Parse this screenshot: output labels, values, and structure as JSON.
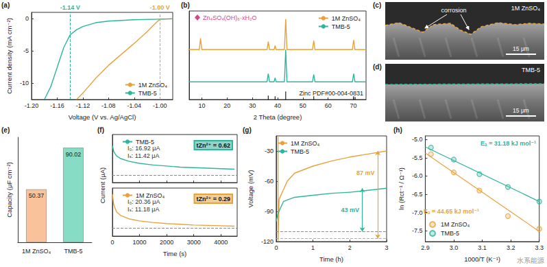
{
  "chart_data": [
    {
      "panel": "(a)",
      "type": "line",
      "x_label": "Voltage (V vs. Ag/AgCl)",
      "y_label": "Current density (mA cm⁻²)",
      "xlim": [
        -1.2,
        -0.98
      ],
      "xticks": [
        {
          "value": -1.2,
          "label": "-1.20"
        },
        -1.16,
        -1.12,
        -1.08,
        -1.04,
        {
          "value": -1,
          "label": "-1.00"
        }
      ],
      "ylim": [
        -12.5,
        1
      ],
      "yticks": [
        -10,
        -5,
        0
      ],
      "legend": "lower right",
      "series": [
        {
          "name": "1M ZnSO₄",
          "color": "#E9A23B",
          "x": [
            -0.98,
            -1.0,
            -1.01,
            -1.02,
            -1.04,
            -1.06,
            -1.08,
            -1.1,
            -1.12,
            -1.13
          ],
          "values": [
            0,
            -0.05,
            -1.0,
            -2.0,
            -3.8,
            -5.5,
            -7.2,
            -9.2,
            -11.5,
            -12.5
          ]
        },
        {
          "name": "TMB-5",
          "color": "#2DB59E",
          "x": [
            -0.98,
            -1.0,
            -1.04,
            -1.08,
            -1.1,
            -1.12,
            -1.13,
            -1.14,
            -1.15,
            -1.16,
            -1.17,
            -1.18
          ],
          "values": [
            0,
            -0.05,
            -0.15,
            -0.35,
            -0.6,
            -1.2,
            -1.7,
            -2.5,
            -4.5,
            -7.5,
            -10.5,
            -12.5
          ]
        }
      ],
      "annotations": [
        {
          "text": "-1.14 V",
          "x": -1.14,
          "color": "#2DB59E"
        },
        {
          "text": "-1.00 V",
          "x": -1,
          "color": "#E9A23B"
        }
      ]
    },
    {
      "panel": "(b)",
      "type": "line",
      "x_label": "2 Theta (degree)",
      "xlim": [
        5,
        75
      ],
      "xticks": [
        10,
        20,
        30,
        40,
        50,
        60,
        70
      ],
      "ylim": [
        0,
        110
      ],
      "tick_labels": "x",
      "legend": "upper right",
      "series": [
        {
          "name": "1M ZnSO₄",
          "color": "#E9A23B",
          "x": [
            5,
            9.0,
            9.5,
            10.0,
            35.8,
            36.3,
            36.8,
            38.6,
            39.0,
            39.4,
            42.7,
            43.2,
            43.7,
            53.8,
            54.3,
            54.8,
            69.6,
            70.1,
            70.6,
            75
          ],
          "values": [
            62,
            62,
            76,
            62,
            62,
            72,
            62,
            62,
            67,
            62,
            62,
            100,
            62,
            62,
            73,
            62,
            62,
            74,
            62,
            62
          ]
        },
        {
          "name": "TMB-5",
          "color": "#2DB59E",
          "x": [
            5,
            9.0,
            9.5,
            10.0,
            35.8,
            36.3,
            36.8,
            38.6,
            39.0,
            39.4,
            42.7,
            43.2,
            43.7,
            53.8,
            54.3,
            54.8,
            69.6,
            70.1,
            70.6,
            75
          ],
          "values": [
            22,
            22,
            22,
            22,
            22,
            32,
            22,
            22,
            27,
            22,
            22,
            62,
            22,
            22,
            31,
            22,
            22,
            32,
            22,
            22
          ]
        }
      ],
      "reference": {
        "name": "Zinc PDF#00-004-0831",
        "color": "#222222",
        "x": [
          36.3,
          39.0,
          43.2,
          54.3,
          70.1,
          70.7
        ],
        "values": [
          5,
          4,
          10,
          4,
          4,
          3
        ]
      },
      "annotations": [
        {
          "text": "Zn₄SO₄(OH)₆·xH₂O",
          "marker": "diamond",
          "color": "#D6478A"
        }
      ]
    },
    {
      "panel": "(e)",
      "type": "bar",
      "y_label": "Capacity (μF cm⁻²)",
      "categories": [
        "1M ZnSO₄",
        "TMB-5"
      ],
      "values": [
        50.37,
        90.02
      ],
      "colors": [
        "#F9C29A",
        "#86DCC4"
      ],
      "ylim": [
        0,
        100
      ],
      "data_labels": true,
      "tick_labels": "x"
    },
    {
      "panel": "(f)",
      "type": "line",
      "x_label": "Time (s)",
      "y_label": "Current (μA)",
      "xlim": [
        0,
        4600
      ],
      "xticks": [
        0,
        1000,
        2000,
        3000,
        4000
      ],
      "subplots": [
        {
          "series": [
            {
              "name": "TMB-5",
              "color": "#2DB59E",
              "x": [
                0,
                50,
                150,
                300,
                600,
                1000,
                1500,
                2000,
                2500,
                3000,
                3500,
                4000,
                4500
              ],
              "values": [
                16.92,
                15.8,
                15.0,
                14.5,
                14.0,
                13.6,
                13.3,
                13.1,
                12.9,
                12.8,
                12.7,
                12.6,
                12.5
              ]
            }
          ],
          "ylim": [
            10,
            19
          ],
          "steady": 11.42,
          "annotations": [
            "I₀: 16.92 μA",
            "Iₛ: 11.42 μA"
          ],
          "transference": "tZn²⁺ = 0.62",
          "legend": "upper left",
          "tick_labels": false
        },
        {
          "series": [
            {
              "name": "1M ZnSO₄",
              "color": "#E9A23B",
              "x": [
                0,
                50,
                150,
                300,
                600,
                1000,
                1500,
                2000,
                2500,
                3000,
                3500,
                4000,
                4500
              ],
              "values": [
                20.36,
                17.5,
                15.6,
                14.6,
                13.7,
                13.1,
                12.7,
                12.4,
                12.2,
                12.0,
                11.9,
                11.8,
                11.7
              ]
            }
          ],
          "ylim": [
            9,
            22
          ],
          "steady": 11.18,
          "annotations": [
            "I₀: 20.36 μA",
            "Iₛ: 11.18 μA"
          ],
          "transference": "tZn²⁺ = 0.29",
          "legend": "upper left",
          "tick_labels": "x"
        }
      ]
    },
    {
      "panel": "(g)",
      "type": "line",
      "x_label": "Time (h)",
      "y_label": "Voltage (mV)",
      "xlim": [
        0,
        3
      ],
      "xticks": [
        0,
        1,
        2,
        3
      ],
      "ylim": [
        -120,
        -15
      ],
      "yticks": [
        -120,
        -90,
        -60,
        -30
      ],
      "legend": "upper left",
      "series": [
        {
          "name": "1M ZnSO₄",
          "color": "#E9A23B",
          "x": [
            0.05,
            0.05,
            0.08,
            0.3,
            0.5,
            1,
            1.5,
            2,
            2.5,
            3
          ],
          "values": [
            -15,
            -120,
            -78,
            -60,
            -52,
            -45,
            -40,
            -36,
            -33,
            -30
          ],
          "baseline": -117,
          "annotation": "87 mV"
        },
        {
          "name": "TMB-5",
          "color": "#2DB59E",
          "x": [
            0,
            0.05,
            0.2,
            0.5,
            1,
            1.5,
            2,
            2.5,
            3
          ],
          "values": [
            -100,
            -92,
            -80,
            -76,
            -74,
            -72,
            -71,
            -69,
            -67
          ],
          "baseline": -110,
          "annotation": "43 mV"
        }
      ]
    },
    {
      "panel": "(h)",
      "type": "scatter",
      "x_label": "1000/T (K⁻¹)",
      "y_label": "ln (Rct⁻¹ / Ω⁻¹)",
      "xlim": [
        2.9,
        3.3
      ],
      "xticks": [
        2.9,
        {
          "value": 3,
          "label": "3.0"
        },
        3.1,
        3.2,
        3.3
      ],
      "ylim": [
        -7.8,
        -4.9
      ],
      "yticks": [
        -7.5,
        {
          "value": -7,
          "label": "-7.0"
        },
        -6.5,
        {
          "value": -6,
          "label": "-6.0"
        },
        -5.5,
        {
          "value": -5,
          "label": "-5.0"
        }
      ],
      "legend": "lower left",
      "marker": "circle",
      "series": [
        {
          "name": "1M ZnSO₄",
          "color": "#E9A23B",
          "x": [
            2.92,
            3.0,
            3.09,
            3.19,
            3.3
          ],
          "values": [
            -5.4,
            -5.9,
            -6.4,
            -7.1,
            -7.45
          ],
          "fit": {
            "x": [
              2.9,
              3.3
            ],
            "values": [
              -5.37,
              -7.52
            ]
          },
          "annotation": "Eₐ = 44.65 kJ mol⁻¹"
        },
        {
          "name": "TMB-5",
          "color": "#2DB59E",
          "x": [
            2.92,
            3.0,
            3.09,
            3.19,
            3.3
          ],
          "values": [
            -5.22,
            -5.55,
            -5.95,
            -6.3,
            -6.7
          ],
          "fit": {
            "x": [
              2.9,
              3.3
            ],
            "values": [
              -5.2,
              -6.7
            ]
          },
          "annotation": "Eₐ = 31.18 kJ mol⁻¹"
        }
      ]
    }
  ],
  "images": [
    {
      "panel": "(c)",
      "label": "1M ZnSO₄",
      "annotation": "corrosion",
      "scale_bar": "15 μm",
      "color": "#E9A23B"
    },
    {
      "panel": "(d)",
      "label": "TMB-5",
      "scale_bar": "15 μm",
      "color": "#2DB59E"
    }
  ],
  "watermark": "水系能源"
}
